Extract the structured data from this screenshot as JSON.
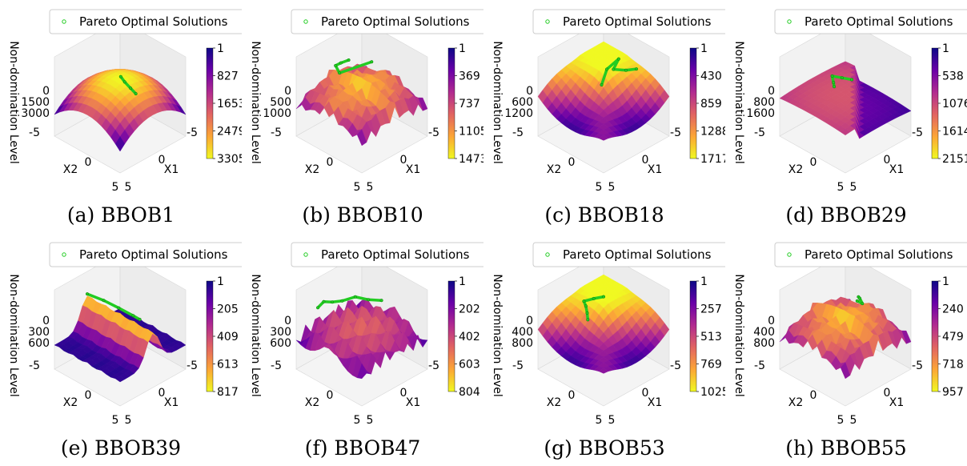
{
  "shared": {
    "legend_label": "Pareto Optimal Solutions",
    "zlabel": "Non-domination Level",
    "cbar_label": "Non-domination Level",
    "xlabel": "X1",
    "ylabel": "X2",
    "x_ticks": [
      "-5",
      "0",
      "5"
    ],
    "y_ticks": [
      "-5",
      "0",
      "5"
    ],
    "colormap": [
      "#f0f921",
      "#fca636",
      "#e16462",
      "#b12a90",
      "#6a00a8",
      "#0d0887"
    ],
    "pareto_color": "#22cc22"
  },
  "chart_data": [
    {
      "type": "surface",
      "caption": "(a) BBOB1",
      "z_ticks": [
        "0",
        "1500",
        "3000"
      ],
      "cbar_ticks": [
        "1",
        "827",
        "1653",
        "2479",
        "3305"
      ],
      "cbar_range": [
        1,
        3305
      ],
      "pareto_points": [
        [
          -0.3,
          -0.2
        ],
        [
          0.1,
          0.8
        ],
        [
          0.4,
          2
        ],
        [
          0.6,
          3
        ]
      ],
      "shape": "smooth"
    },
    {
      "type": "surface",
      "caption": "(b) BBOB10",
      "z_ticks": [
        "0",
        "500",
        "1000"
      ],
      "cbar_ticks": [
        "1",
        "369",
        "737",
        "1105",
        "1473"
      ],
      "cbar_range": [
        1,
        1473
      ],
      "pareto_points": [
        [
          -2,
          -4
        ],
        [
          -1,
          -4.2
        ],
        [
          0,
          -4
        ],
        [
          0.4,
          -3
        ],
        [
          -3.5,
          -2
        ]
      ],
      "shape": "rugged"
    },
    {
      "type": "surface",
      "caption": "(c) BBOB18",
      "z_ticks": [
        "0",
        "600",
        "1200"
      ],
      "cbar_ticks": [
        "1",
        "430",
        "859",
        "1288",
        "1717"
      ],
      "cbar_range": [
        1,
        1717
      ],
      "pareto_points": [
        [
          -4,
          1
        ],
        [
          -3,
          0.4
        ],
        [
          -2,
          -0.5
        ],
        [
          -3.8,
          -1.5
        ],
        [
          -1.5,
          -1
        ],
        [
          0.5,
          0.2
        ]
      ],
      "shape": "ridge"
    },
    {
      "type": "surface",
      "caption": "(d) BBOB29",
      "z_ticks": [
        "0",
        "800",
        "1600"
      ],
      "cbar_ticks": [
        "1",
        "538",
        "1076",
        "1614",
        "2151"
      ],
      "cbar_range": [
        1,
        2151
      ],
      "pareto_points": [
        [
          -1,
          0
        ],
        [
          -0.5,
          -1
        ],
        [
          0,
          -2
        ],
        [
          0.8,
          -1
        ],
        [
          1.3,
          -0.4
        ]
      ],
      "shape": "plateau"
    },
    {
      "type": "surface",
      "caption": "(e) BBOB39",
      "z_ticks": [
        "0",
        "300",
        "600"
      ],
      "cbar_ticks": [
        "1",
        "205",
        "409",
        "613",
        "817"
      ],
      "cbar_range": [
        1,
        817
      ],
      "pareto_points": [
        [
          0,
          -5
        ],
        [
          -0.5,
          -3
        ],
        [
          -0.8,
          -1
        ],
        [
          -1,
          1
        ],
        [
          -1,
          2
        ]
      ],
      "shape": "spike"
    },
    {
      "type": "surface",
      "caption": "(f) BBOB47",
      "z_ticks": [
        "0",
        "300",
        "600"
      ],
      "cbar_ticks": [
        "1",
        "202",
        "402",
        "603",
        "804"
      ],
      "cbar_range": [
        1,
        804
      ],
      "pareto_points": [
        [
          -4,
          -1
        ],
        [
          -3,
          -2
        ],
        [
          -2,
          -3
        ],
        [
          -1,
          -4
        ],
        [
          0,
          -4.5
        ],
        [
          1,
          -4.8
        ],
        [
          2,
          -4.7
        ]
      ],
      "shape": "stripes"
    },
    {
      "type": "surface",
      "caption": "(g) BBOB53",
      "z_ticks": [
        "0",
        "400",
        "800"
      ],
      "cbar_ticks": [
        "1",
        "257",
        "513",
        "769",
        "1025"
      ],
      "cbar_range": [
        1,
        1025
      ],
      "pareto_points": [
        [
          -2,
          -2
        ],
        [
          -1,
          -2.5
        ],
        [
          0,
          -3
        ],
        [
          0.4,
          -2.3
        ],
        [
          1,
          -1.5
        ],
        [
          1.6,
          -0.8
        ]
      ],
      "shape": "ridge"
    },
    {
      "type": "surface",
      "caption": "(h) BBOB55",
      "z_ticks": [
        "0",
        "400",
        "800"
      ],
      "cbar_ticks": [
        "1",
        "240",
        "479",
        "718",
        "957"
      ],
      "cbar_range": [
        1,
        957
      ],
      "pareto_points": [
        [
          -3.5,
          -1.5
        ],
        [
          -3.2,
          -1
        ],
        [
          -3,
          -0.4
        ],
        [
          -2.6,
          -0.8
        ]
      ],
      "shape": "rugged"
    }
  ]
}
